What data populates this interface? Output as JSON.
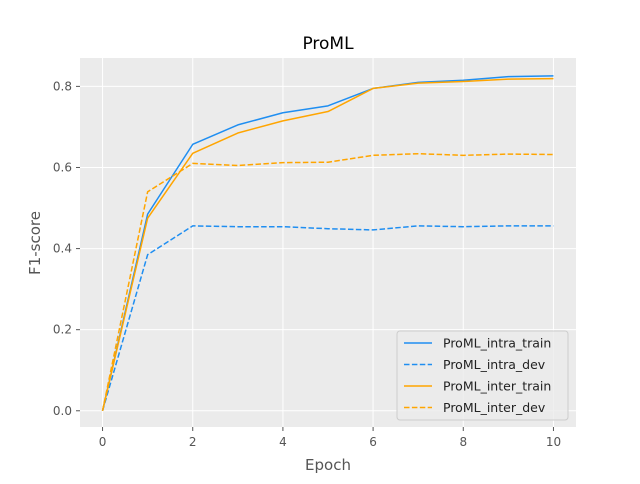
{
  "chart_data": {
    "type": "line",
    "title": "ProML",
    "xlabel": "Epoch",
    "ylabel": "F1-score",
    "xlim": [
      -0.5,
      10.5
    ],
    "ylim": [
      -0.04,
      0.87
    ],
    "xticks": [
      0,
      2,
      4,
      6,
      8,
      10
    ],
    "yticks": [
      0.0,
      0.2,
      0.4,
      0.6,
      0.8
    ],
    "xtick_labels": [
      "0",
      "2",
      "4",
      "6",
      "8",
      "10"
    ],
    "ytick_labels": [
      "0.0",
      "0.2",
      "0.4",
      "0.6",
      "0.8"
    ],
    "grid": true,
    "legend_position": "lower-right",
    "x": [
      0,
      1,
      2,
      3,
      4,
      5,
      6,
      7,
      8,
      9,
      10
    ],
    "series": [
      {
        "name": "ProML_intra_train",
        "color": "#1f8ef1",
        "dashed": false,
        "values": [
          0.0,
          0.485,
          0.657,
          0.705,
          0.735,
          0.752,
          0.795,
          0.81,
          0.815,
          0.824,
          0.826
        ]
      },
      {
        "name": "ProML_intra_dev",
        "color": "#1f8ef1",
        "dashed": true,
        "values": [
          0.0,
          0.385,
          0.456,
          0.454,
          0.454,
          0.449,
          0.446,
          0.456,
          0.454,
          0.456,
          0.456
        ]
      },
      {
        "name": "ProML_inter_train",
        "color": "#ffa500",
        "dashed": false,
        "values": [
          0.0,
          0.475,
          0.635,
          0.685,
          0.715,
          0.738,
          0.795,
          0.808,
          0.812,
          0.818,
          0.819
        ]
      },
      {
        "name": "ProML_inter_dev",
        "color": "#ffa500",
        "dashed": true,
        "values": [
          0.0,
          0.54,
          0.61,
          0.605,
          0.612,
          0.613,
          0.63,
          0.634,
          0.63,
          0.633,
          0.632
        ]
      }
    ]
  }
}
